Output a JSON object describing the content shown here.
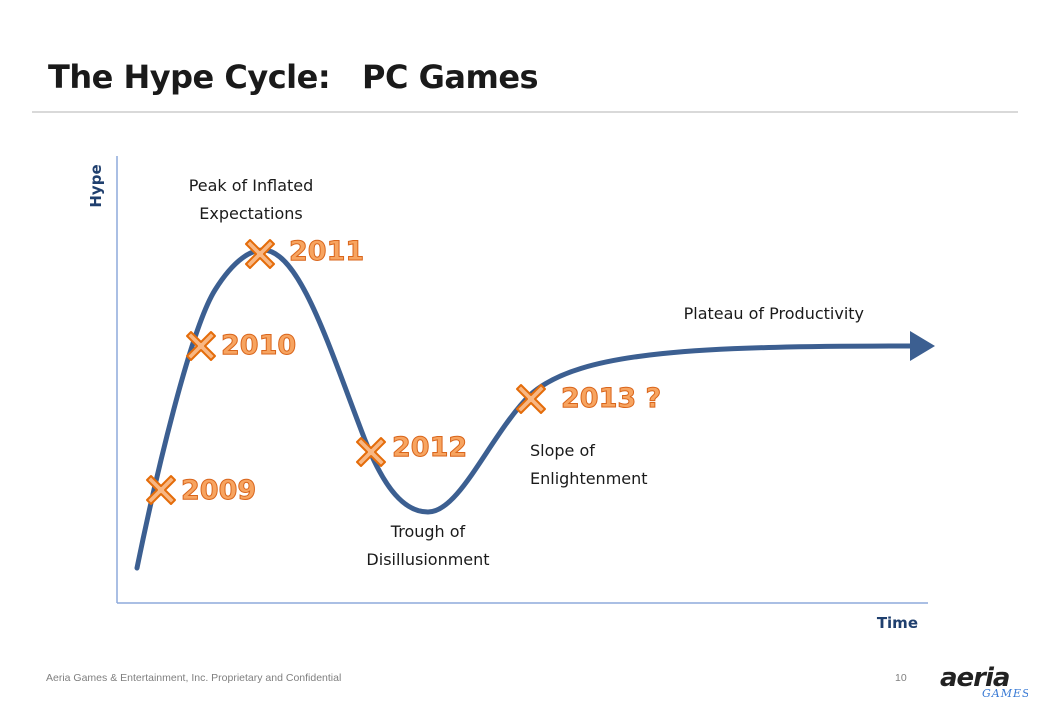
{
  "slide": {
    "title": "The Hype Cycle:   PC Games"
  },
  "axes": {
    "y_label": "Hype",
    "x_label": "Time"
  },
  "phases": {
    "peak_line1": "Peak of Inflated",
    "peak_line2": "Expectations",
    "trough_line1": "Trough of",
    "trough_line2": "Disillusionment",
    "slope_line1": "Slope of",
    "slope_line2": "Enlightenment",
    "plateau": "Plateau of Productivity"
  },
  "markers": [
    {
      "label": "2009"
    },
    {
      "label": "2010"
    },
    {
      "label": "2011"
    },
    {
      "label": "2012"
    },
    {
      "label": "2013 ?"
    }
  ],
  "colors": {
    "curve": "#3c5f91",
    "axis": "#8eaadb",
    "axis_label": "#1f3f6e",
    "marker_fill": "#f8b783",
    "marker_stroke": "#e46c0a",
    "year_text": "#f7a460",
    "year_stroke": "#d9651b"
  },
  "footer": {
    "text": "Aeria Games & Entertainment, Inc. Proprietary and Confidential",
    "page": "10"
  },
  "logo": {
    "main": "aeria",
    "sub": "GAMES"
  }
}
